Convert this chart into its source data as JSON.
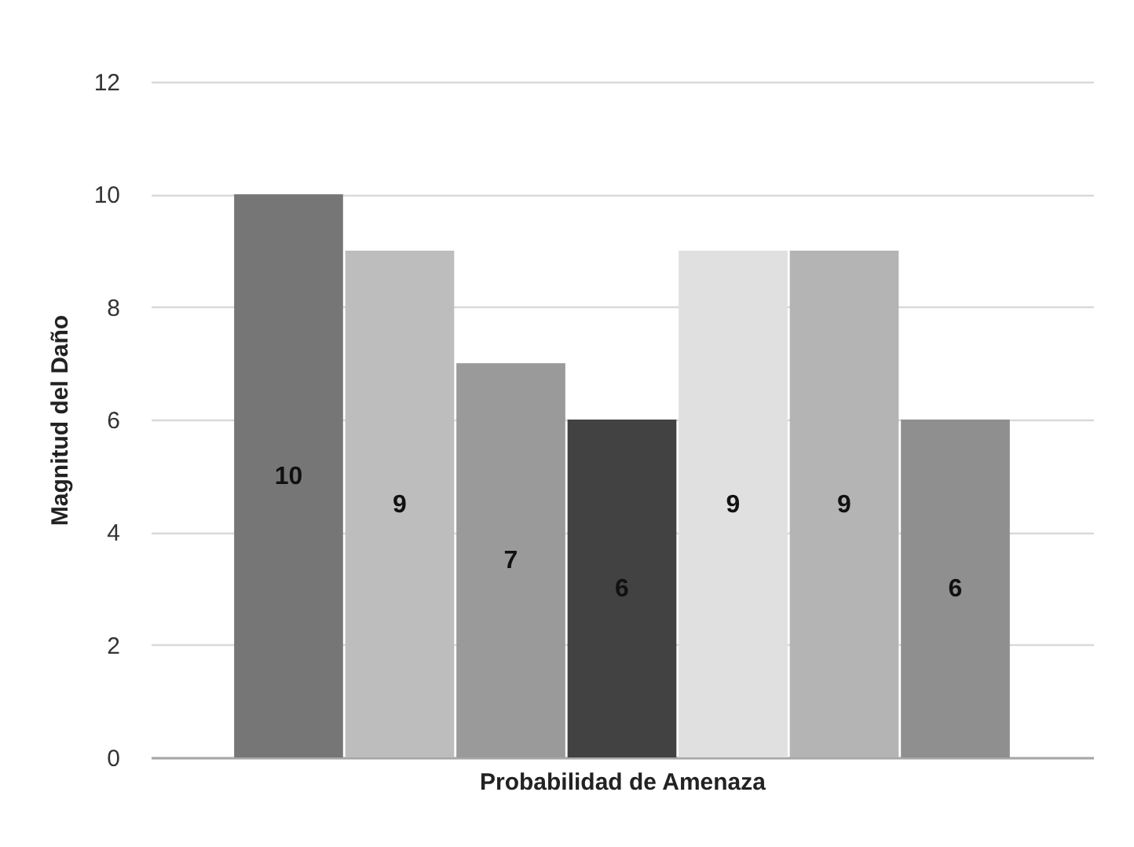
{
  "chart_data": {
    "type": "bar",
    "xlabel": "Probabilidad de Amenaza",
    "ylabel": "Magnitud del Daño",
    "categories": [
      null,
      null,
      null,
      null,
      null,
      null,
      null
    ],
    "values": [
      10,
      9,
      7,
      6,
      9,
      9,
      6
    ],
    "colors": [
      "#767676",
      "#bdbdbd",
      "#9a9a9a",
      "#424242",
      "#e0e0e0",
      "#b4b4b4",
      "#8f8f8f"
    ],
    "ylim": [
      0,
      12
    ],
    "yticks": [
      0,
      2,
      4,
      6,
      8,
      10,
      12
    ],
    "grid": "y",
    "data_labels": true,
    "tick_labels": "y"
  }
}
